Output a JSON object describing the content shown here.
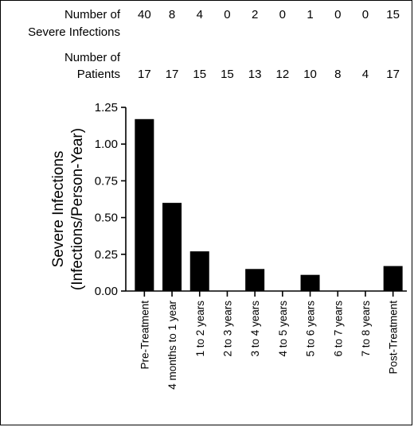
{
  "chart_data": {
    "type": "bar",
    "categories": [
      "Pre-Treatment",
      "4 months to 1 year",
      "1 to 2 years",
      "2 to 3 years",
      "3 to 4 years",
      "4 to 5 years",
      "5 to 6 years",
      "6 to 7 years",
      "7 to 8 years",
      "Post-Treatment"
    ],
    "values": [
      1.17,
      0.6,
      0.27,
      0,
      0.15,
      0,
      0.11,
      0,
      0,
      0.17
    ],
    "ylabel_line1": "Severe Infections",
    "ylabel_line2": "(Infections/Person-Year)",
    "ylim": [
      0,
      1.25
    ],
    "yticks": [
      "0.00",
      "0.25",
      "0.50",
      "0.75",
      "1.00",
      "1.25"
    ],
    "bar_color": "#000000",
    "grid": false,
    "annotation_rows": [
      {
        "label_line1": "Number of",
        "label_line2": "Severe Infections",
        "values": [
          40,
          8,
          4,
          0,
          2,
          0,
          1,
          0,
          0,
          15
        ]
      },
      {
        "label_line1": "Number of",
        "label_line2": "Patients",
        "values": [
          17,
          17,
          15,
          15,
          13,
          12,
          10,
          8,
          4,
          17
        ]
      }
    ]
  }
}
